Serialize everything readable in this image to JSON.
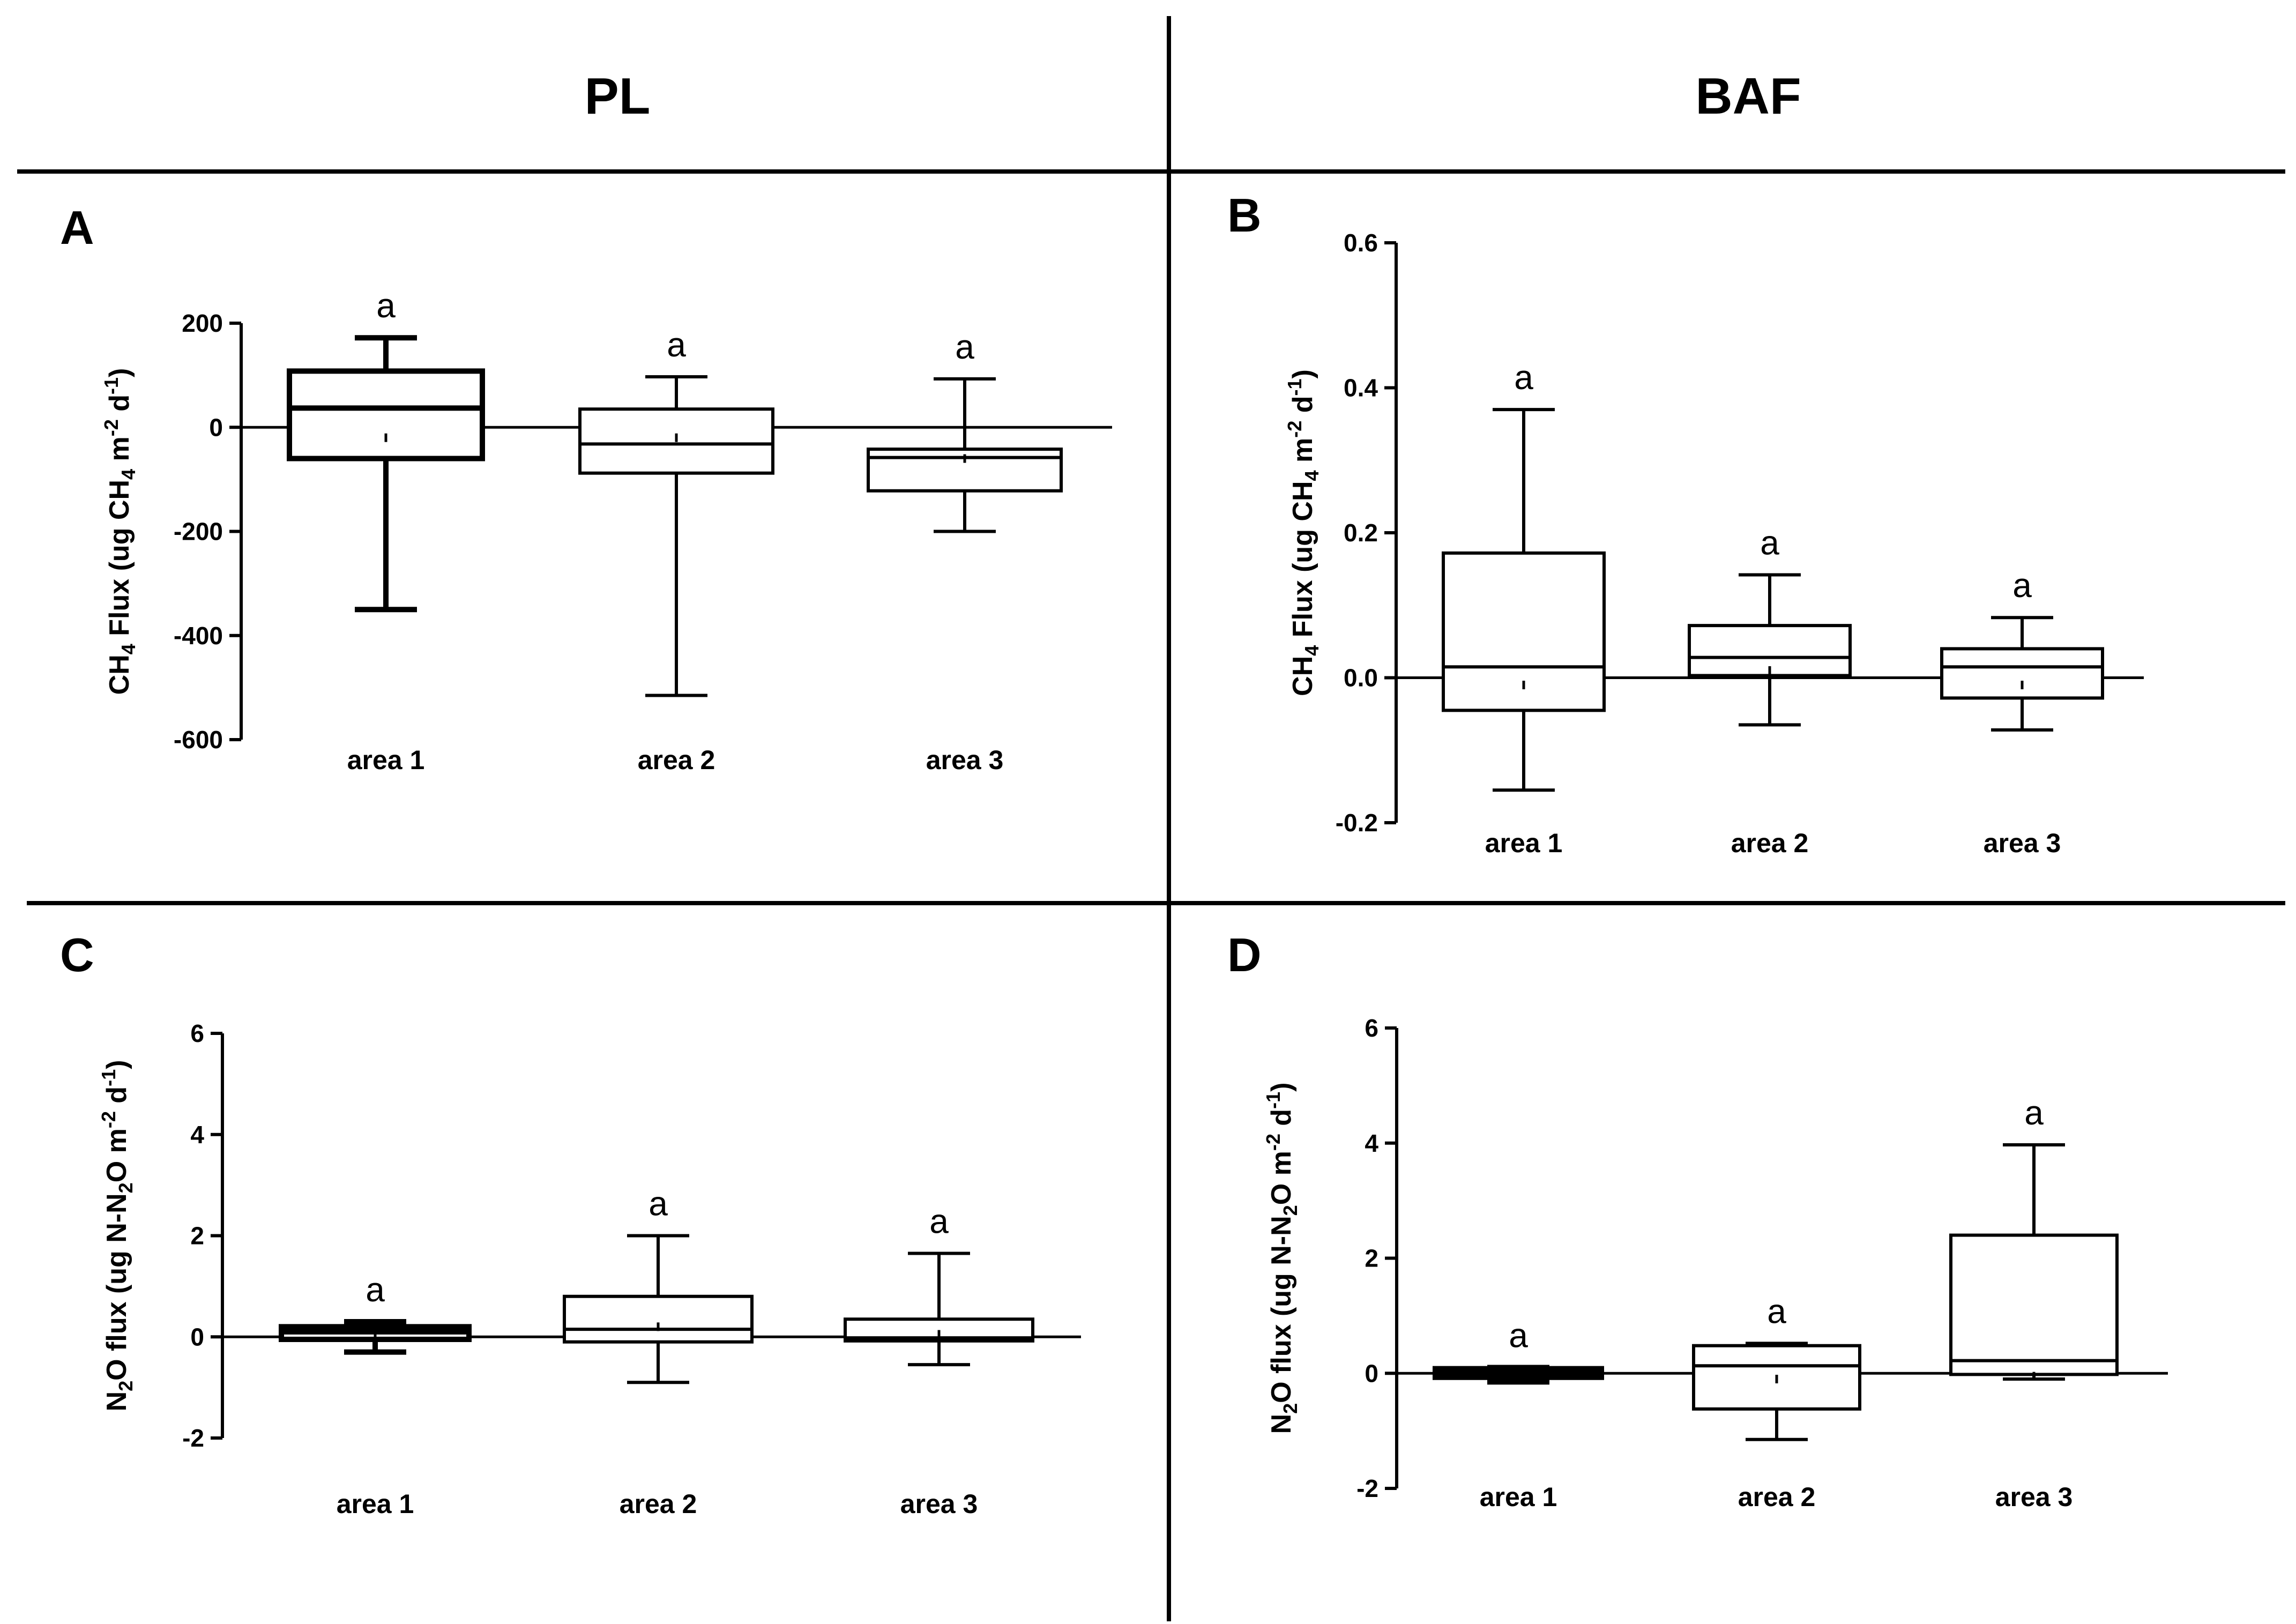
{
  "headers": {
    "left": "PL",
    "right": "BAF"
  },
  "chart_data": [
    {
      "panel": "A",
      "type": "box",
      "column": "PL",
      "ylabel_parts": [
        {
          "t": "CH"
        },
        {
          "t": "4",
          "sub": true
        },
        {
          "t": " Flux (ug CH"
        },
        {
          "t": "4",
          "sub": true
        },
        {
          "t": " m"
        },
        {
          "t": "-2",
          "sup": true
        },
        {
          "t": " d"
        },
        {
          "t": "-1",
          "sup": true
        },
        {
          "t": ")"
        }
      ],
      "ylim": [
        -600,
        200
      ],
      "yticks": [
        200,
        0,
        -200,
        -400,
        -600
      ],
      "categories": [
        "area 1",
        "area 2",
        "area 3"
      ],
      "boxes": [
        {
          "min": -350,
          "q1": -60,
          "median": 37,
          "q3": 108,
          "max": 172,
          "mean": -20,
          "letter": "a",
          "bold": true
        },
        {
          "min": -515,
          "q1": -88,
          "median": -32,
          "q3": 35,
          "max": 97,
          "mean": -20,
          "letter": "a",
          "bold": false
        },
        {
          "min": -200,
          "q1": -122,
          "median": -58,
          "q3": -42,
          "max": 93,
          "mean": -60,
          "letter": "a",
          "bold": false
        }
      ]
    },
    {
      "panel": "B",
      "type": "box",
      "column": "BAF",
      "ylabel_parts": [
        {
          "t": "CH"
        },
        {
          "t": "4",
          "sub": true
        },
        {
          "t": " Flux (ug CH"
        },
        {
          "t": "4",
          "sub": true
        },
        {
          "t": " m"
        },
        {
          "t": "-2",
          "sup": true
        },
        {
          "t": " d"
        },
        {
          "t": "-1",
          "sup": true
        },
        {
          "t": ")"
        }
      ],
      "ylim": [
        -0.2,
        0.6
      ],
      "yticks": [
        0.6,
        0.4,
        0.2,
        0.0,
        -0.2
      ],
      "ytick_labels": [
        "0.6",
        "0.4",
        "0.2",
        "0.0",
        "-0.2"
      ],
      "categories": [
        "area 1",
        "area 2",
        "area 3"
      ],
      "boxes": [
        {
          "min": -0.155,
          "q1": -0.045,
          "median": 0.015,
          "q3": 0.172,
          "max": 0.37,
          "mean": -0.01,
          "letter": "a",
          "bold": false
        },
        {
          "min": -0.065,
          "q1": 0.003,
          "median": 0.028,
          "q3": 0.072,
          "max": 0.142,
          "mean": 0.01,
          "letter": "a",
          "bold": false
        },
        {
          "min": -0.072,
          "q1": -0.028,
          "median": 0.015,
          "q3": 0.04,
          "max": 0.083,
          "mean": -0.01,
          "letter": "a",
          "bold": false
        }
      ]
    },
    {
      "panel": "C",
      "type": "box",
      "column": "PL",
      "ylabel_parts": [
        {
          "t": "N"
        },
        {
          "t": "2",
          "sub": true
        },
        {
          "t": "O flux (ug N-N"
        },
        {
          "t": "2",
          "sub": true
        },
        {
          "t": "O m"
        },
        {
          "t": "-2",
          "sup": true
        },
        {
          "t": " d"
        },
        {
          "t": "-1",
          "sup": true
        },
        {
          "t": ")"
        }
      ],
      "ylim": [
        -2,
        6
      ],
      "yticks": [
        6,
        4,
        2,
        0,
        -2
      ],
      "categories": [
        "area 1",
        "area 2",
        "area 3"
      ],
      "boxes": [
        {
          "min": -0.3,
          "q1": -0.05,
          "median": 0.1,
          "q3": 0.2,
          "max": 0.3,
          "mean": 0.05,
          "letter": "a",
          "bold": true
        },
        {
          "min": -0.9,
          "q1": -0.1,
          "median": 0.15,
          "q3": 0.8,
          "max": 2.0,
          "mean": 0.2,
          "letter": "a",
          "bold": false
        },
        {
          "min": -0.55,
          "q1": -0.08,
          "median": -0.02,
          "q3": 0.35,
          "max": 1.65,
          "mean": 0.05,
          "letter": "a",
          "bold": false
        }
      ]
    },
    {
      "panel": "D",
      "type": "box",
      "column": "BAF",
      "ylabel_parts": [
        {
          "t": "N"
        },
        {
          "t": "2",
          "sub": true
        },
        {
          "t": "O flux (ug N-N"
        },
        {
          "t": "2",
          "sub": true
        },
        {
          "t": "O m"
        },
        {
          "t": "-2",
          "sup": true
        },
        {
          "t": " d"
        },
        {
          "t": "-1",
          "sup": true
        },
        {
          "t": ")"
        }
      ],
      "ylim": [
        -2,
        6
      ],
      "yticks": [
        6,
        4,
        2,
        0,
        -2
      ],
      "categories": [
        "area 1",
        "area 2",
        "area 3"
      ],
      "boxes": [
        {
          "min": -0.15,
          "q1": -0.07,
          "median": 0.0,
          "q3": 0.08,
          "max": 0.1,
          "mean": 0.0,
          "letter": "a",
          "bold": true
        },
        {
          "min": -1.15,
          "q1": -0.62,
          "median": 0.13,
          "q3": 0.48,
          "max": 0.52,
          "mean": -0.1,
          "letter": "a",
          "bold": false
        },
        {
          "min": -0.1,
          "q1": -0.02,
          "median": 0.22,
          "q3": 2.4,
          "max": 3.97,
          "mean": -0.05,
          "letter": "a",
          "bold": false
        }
      ]
    }
  ]
}
